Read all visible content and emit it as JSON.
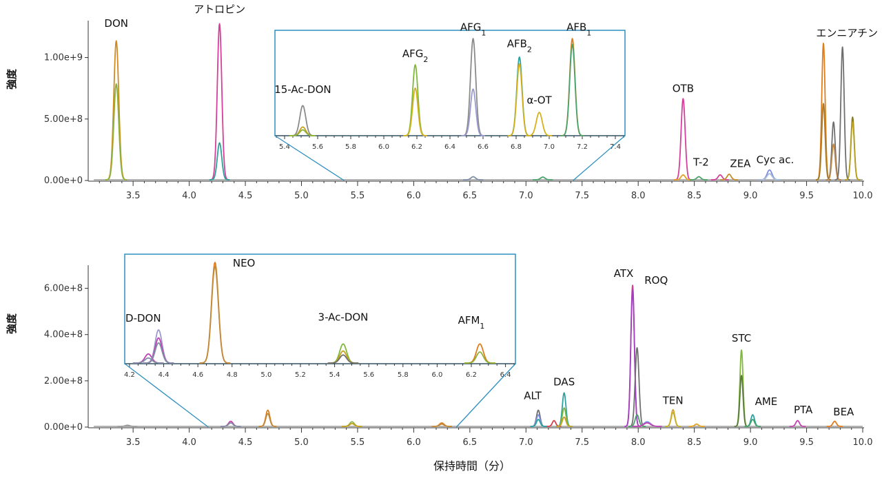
{
  "xlabel": "保持時間（分）",
  "colors": {
    "axis": "#333333",
    "inset_border": "#2e8fc0",
    "baseline": "#9a9a9a"
  },
  "chart_data": [
    {
      "type": "line",
      "id": "top",
      "ylabel": "強度",
      "xlim": [
        3.1,
        10.0
      ],
      "ylim": [
        0,
        1300000000
      ],
      "xticks": [
        3.5,
        4.0,
        4.5,
        5.0,
        5.5,
        6.0,
        6.5,
        7.0,
        7.5,
        8.0,
        8.5,
        9.0,
        9.5,
        10.0
      ],
      "xtick_labels": [
        "3.5",
        "4.0",
        "4.5",
        "5.0",
        "5.5",
        "6.0",
        "6.5",
        "7.0",
        "7.5",
        "8.0",
        "8.5",
        "9.0",
        "9.5",
        "10.0"
      ],
      "yticks": [
        0,
        500000000,
        1000000000
      ],
      "ytick_labels": [
        "0.00e+0",
        "5.00e+8",
        "1.00e+9"
      ],
      "peaks": [
        {
          "rt": 3.35,
          "w": 0.022,
          "h": [
            1130000000,
            780000000
          ],
          "colors": [
            "#d08a20",
            "#8db33a"
          ]
        },
        {
          "rt": 4.27,
          "w": 0.02,
          "h": [
            1270000000,
            300000000
          ],
          "colors": [
            "#d43f9a",
            "#2aa39a"
          ]
        },
        {
          "rt": 6.53,
          "w": 0.02,
          "h": [
            25000000
          ],
          "colors": [
            "#7f8fa6"
          ]
        },
        {
          "rt": 7.15,
          "w": 0.02,
          "h": [
            22000000
          ],
          "colors": [
            "#4aa36a"
          ]
        },
        {
          "rt": 8.4,
          "w": 0.018,
          "h": [
            660000000,
            40000000
          ],
          "colors": [
            "#d43f9a",
            "#e6a020"
          ]
        },
        {
          "rt": 8.54,
          "w": 0.018,
          "h": [
            25000000
          ],
          "colors": [
            "#4aa36a"
          ]
        },
        {
          "rt": 8.73,
          "w": 0.018,
          "h": [
            40000000
          ],
          "colors": [
            "#d43f9a"
          ]
        },
        {
          "rt": 8.81,
          "w": 0.018,
          "h": [
            45000000
          ],
          "colors": [
            "#c58a2a"
          ]
        },
        {
          "rt": 9.17,
          "w": 0.022,
          "h": [
            80000000,
            50000000
          ],
          "colors": [
            "#7f8fe0",
            "#a7bdd9"
          ]
        },
        {
          "rt": 9.65,
          "w": 0.015,
          "h": [
            1110000000,
            620000000
          ],
          "colors": [
            "#e07d1a",
            "#a87c2a"
          ]
        },
        {
          "rt": 9.74,
          "w": 0.015,
          "h": [
            470000000,
            290000000
          ],
          "colors": [
            "#6f6f6f",
            "#c08a4a"
          ]
        },
        {
          "rt": 9.82,
          "w": 0.015,
          "h": [
            1080000000
          ],
          "colors": [
            "#6f6f6f"
          ]
        },
        {
          "rt": 9.91,
          "w": 0.015,
          "h": [
            510000000,
            470000000
          ],
          "colors": [
            "#8a7a2a",
            "#b8a020"
          ]
        }
      ],
      "annotations": [
        {
          "text": "DON",
          "x": 3.35,
          "y": 1250000000
        },
        {
          "text": "アトロピン",
          "x": 4.27,
          "y": 1365000000
        },
        {
          "text": "OTB",
          "x": 8.4,
          "y": 720000000
        },
        {
          "text": "T-2",
          "x": 8.56,
          "y": 120000000
        },
        {
          "text": "ZEA",
          "x": 8.91,
          "y": 110000000
        },
        {
          "text": "Cyc ac.",
          "x": 9.22,
          "y": 140000000
        },
        {
          "text": "エンニアチン",
          "x": 9.86,
          "y": 1170000000
        }
      ],
      "inset": {
        "xlim": [
          5.35,
          7.45
        ],
        "zoom_from": [
          5.38,
          7.42
        ],
        "xticks": [
          5.4,
          5.6,
          5.8,
          6.0,
          6.2,
          6.4,
          6.6,
          6.8,
          7.0,
          7.2,
          7.4
        ],
        "xtick_labels": [
          "5.4",
          "5.6",
          "5.8",
          "6.0",
          "6.2",
          "6.4",
          "6.6",
          "6.8",
          "7.0",
          "7.2",
          "7.4"
        ],
        "peaks": [
          {
            "rt": 5.51,
            "w": 0.018,
            "h": [
              0.31,
              0.09,
              0.06
            ],
            "colors": [
              "#8a8a8a",
              "#c7a020",
              "#8db33a"
            ]
          },
          {
            "rt": 6.19,
            "w": 0.016,
            "h": [
              0.73,
              0.49
            ],
            "colors": [
              "#7fb83a",
              "#d6b01a"
            ]
          },
          {
            "rt": 6.54,
            "w": 0.016,
            "h": [
              1.0,
              0.48
            ],
            "colors": [
              "#8a8a8a",
              "#9a9ad0"
            ]
          },
          {
            "rt": 6.82,
            "w": 0.016,
            "h": [
              0.81,
              0.74
            ],
            "colors": [
              "#2aa3a0",
              "#d6b01a"
            ]
          },
          {
            "rt": 6.94,
            "w": 0.018,
            "h": [
              0.24
            ],
            "colors": [
              "#d6b01a"
            ]
          },
          {
            "rt": 7.14,
            "w": 0.016,
            "h": [
              1.0,
              0.94
            ],
            "colors": [
              "#e07d1a",
              "#4aa36a"
            ]
          }
        ],
        "annotations": [
          {
            "text": "15-Ac-DON",
            "x": 5.51,
            "y": 0.44
          },
          {
            "text": "AFG",
            "sub": "2",
            "x": 6.19,
            "y": 0.81
          },
          {
            "text": "AFG",
            "sub": "1",
            "x": 6.54,
            "y": 1.08
          },
          {
            "text": "AFB",
            "sub": "2",
            "x": 6.82,
            "y": 0.91
          },
          {
            "text": "α-OT",
            "x": 6.94,
            "y": 0.33
          },
          {
            "text": "AFB",
            "sub": "1",
            "x": 7.18,
            "y": 1.08
          }
        ]
      }
    },
    {
      "type": "line",
      "id": "bottom",
      "ylabel": "強度",
      "xlim": [
        3.1,
        10.0
      ],
      "ylim": [
        0,
        700000000
      ],
      "xticks": [
        3.5,
        4.0,
        4.5,
        5.0,
        5.5,
        6.0,
        6.5,
        7.0,
        7.5,
        8.0,
        8.5,
        9.0,
        9.5,
        10.0
      ],
      "xtick_labels": [
        "3.5",
        "4.0",
        "4.5",
        "5.0",
        "5.5",
        "6.0",
        "6.5",
        "7.0",
        "7.5",
        "8.0",
        "8.5",
        "9.0",
        "9.5",
        "10.0"
      ],
      "yticks": [
        0,
        200000000,
        400000000,
        600000000
      ],
      "ytick_labels": [
        "0.00e+0",
        "2.00e+8",
        "4.00e+8",
        "6.00e+8"
      ],
      "peaks": [
        {
          "rt": 3.45,
          "w": 0.02,
          "h": [
            5000000
          ],
          "colors": [
            "#9a9a9a"
          ]
        },
        {
          "rt": 4.37,
          "w": 0.02,
          "h": [
            22000000,
            15000000
          ],
          "colors": [
            "#c043b0",
            "#7f8fa6"
          ]
        },
        {
          "rt": 4.7,
          "w": 0.018,
          "h": [
            70000000,
            55000000
          ],
          "colors": [
            "#e07d1a",
            "#c08a3a"
          ]
        },
        {
          "rt": 5.45,
          "w": 0.02,
          "h": [
            20000000,
            12000000
          ],
          "colors": [
            "#8db33a",
            "#c7a020"
          ]
        },
        {
          "rt": 6.25,
          "w": 0.02,
          "h": [
            15000000,
            10000000
          ],
          "colors": [
            "#e07d1a",
            "#c08a3a"
          ]
        },
        {
          "rt": 7.11,
          "w": 0.016,
          "h": [
            70000000,
            50000000,
            30000000
          ],
          "colors": [
            "#6f6f6f",
            "#7f8fe0",
            "#2aa3a0"
          ]
        },
        {
          "rt": 7.25,
          "w": 0.015,
          "h": [
            25000000
          ],
          "colors": [
            "#d43f4a"
          ]
        },
        {
          "rt": 7.34,
          "w": 0.016,
          "h": [
            145000000,
            80000000,
            40000000
          ],
          "colors": [
            "#2aa3a0",
            "#7fb83a",
            "#c7a020"
          ]
        },
        {
          "rt": 7.95,
          "w": 0.016,
          "h": [
            610000000,
            590000000
          ],
          "colors": [
            "#d43f9a",
            "#a040c0"
          ]
        },
        {
          "rt": 7.99,
          "w": 0.017,
          "h": [
            340000000,
            50000000
          ],
          "colors": [
            "#6f6f6f",
            "#4aa36a"
          ]
        },
        {
          "rt": 8.08,
          "w": 0.03,
          "h": [
            20000000,
            15000000
          ],
          "colors": [
            "#7f8fe0",
            "#c043b0"
          ]
        },
        {
          "rt": 8.31,
          "w": 0.016,
          "h": [
            72000000,
            60000000
          ],
          "colors": [
            "#d6a020",
            "#c7b030"
          ]
        },
        {
          "rt": 8.52,
          "w": 0.016,
          "h": [
            10000000
          ],
          "colors": [
            "#e6a020"
          ]
        },
        {
          "rt": 8.92,
          "w": 0.014,
          "h": [
            330000000,
            220000000
          ],
          "colors": [
            "#7fb83a",
            "#5a7a3a"
          ]
        },
        {
          "rt": 9.02,
          "w": 0.016,
          "h": [
            50000000,
            30000000
          ],
          "colors": [
            "#2aa3a0",
            "#4aa36a"
          ]
        },
        {
          "rt": 9.42,
          "w": 0.016,
          "h": [
            25000000
          ],
          "colors": [
            "#c043b0"
          ]
        },
        {
          "rt": 9.75,
          "w": 0.016,
          "h": [
            22000000
          ],
          "colors": [
            "#e07d1a"
          ]
        }
      ],
      "annotations": [
        {
          "text": "ALT",
          "x": 7.06,
          "y": 120000000
        },
        {
          "text": "DAS",
          "x": 7.34,
          "y": 180000000
        },
        {
          "text": "ATX",
          "x": 7.87,
          "y": 650000000
        },
        {
          "text": "ROQ",
          "x": 8.16,
          "y": 620000000
        },
        {
          "text": "TEN",
          "x": 8.31,
          "y": 100000000
        },
        {
          "text": "STC",
          "x": 8.92,
          "y": 370000000
        },
        {
          "text": "AME",
          "x": 9.14,
          "y": 95000000
        },
        {
          "text": "PTA",
          "x": 9.47,
          "y": 60000000
        },
        {
          "text": "BEA",
          "x": 9.83,
          "y": 50000000
        }
      ],
      "inset": {
        "xlim": [
          4.18,
          6.45
        ],
        "zoom_from": [
          4.17,
          6.38
        ],
        "xticks": [
          4.2,
          4.4,
          4.6,
          4.8,
          5.0,
          5.2,
          5.4,
          5.6,
          5.8,
          6.0,
          6.2,
          6.4
        ],
        "xtick_labels": [
          "4.2",
          "4.4",
          "4.6",
          "4.8",
          "5.0",
          "5.2",
          "5.4",
          "5.6",
          "5.8",
          "6.0",
          "6.2",
          "6.4"
        ],
        "peaks": [
          {
            "rt": 4.31,
            "w": 0.02,
            "h": [
              0.09,
              0.05
            ],
            "colors": [
              "#c043b0",
              "#7f8fa6"
            ]
          },
          {
            "rt": 4.37,
            "w": 0.02,
            "h": [
              0.33,
              0.25,
              0.2
            ],
            "colors": [
              "#9a9ad0",
              "#c043b0",
              "#7f8fa6"
            ]
          },
          {
            "rt": 4.7,
            "w": 0.02,
            "h": [
              1.0,
              0.96
            ],
            "colors": [
              "#e07d1a",
              "#c08a3a"
            ]
          },
          {
            "rt": 5.45,
            "w": 0.02,
            "h": [
              0.19,
              0.12,
              0.08
            ],
            "colors": [
              "#7fb83a",
              "#c7a020",
              "#6f6f6f"
            ]
          },
          {
            "rt": 6.25,
            "w": 0.02,
            "h": [
              0.19,
              0.11
            ],
            "colors": [
              "#e07d1a",
              "#8db33a"
            ]
          }
        ],
        "annotations": [
          {
            "text": "D-DON",
            "x": 4.28,
            "y": 0.41
          },
          {
            "text": "NEO",
            "x": 4.87,
            "y": 0.96
          },
          {
            "text": "3-Ac-DON",
            "x": 5.45,
            "y": 0.42
          },
          {
            "text": "AFM",
            "sub": "1",
            "x": 6.2,
            "y": 0.39
          }
        ]
      }
    }
  ]
}
